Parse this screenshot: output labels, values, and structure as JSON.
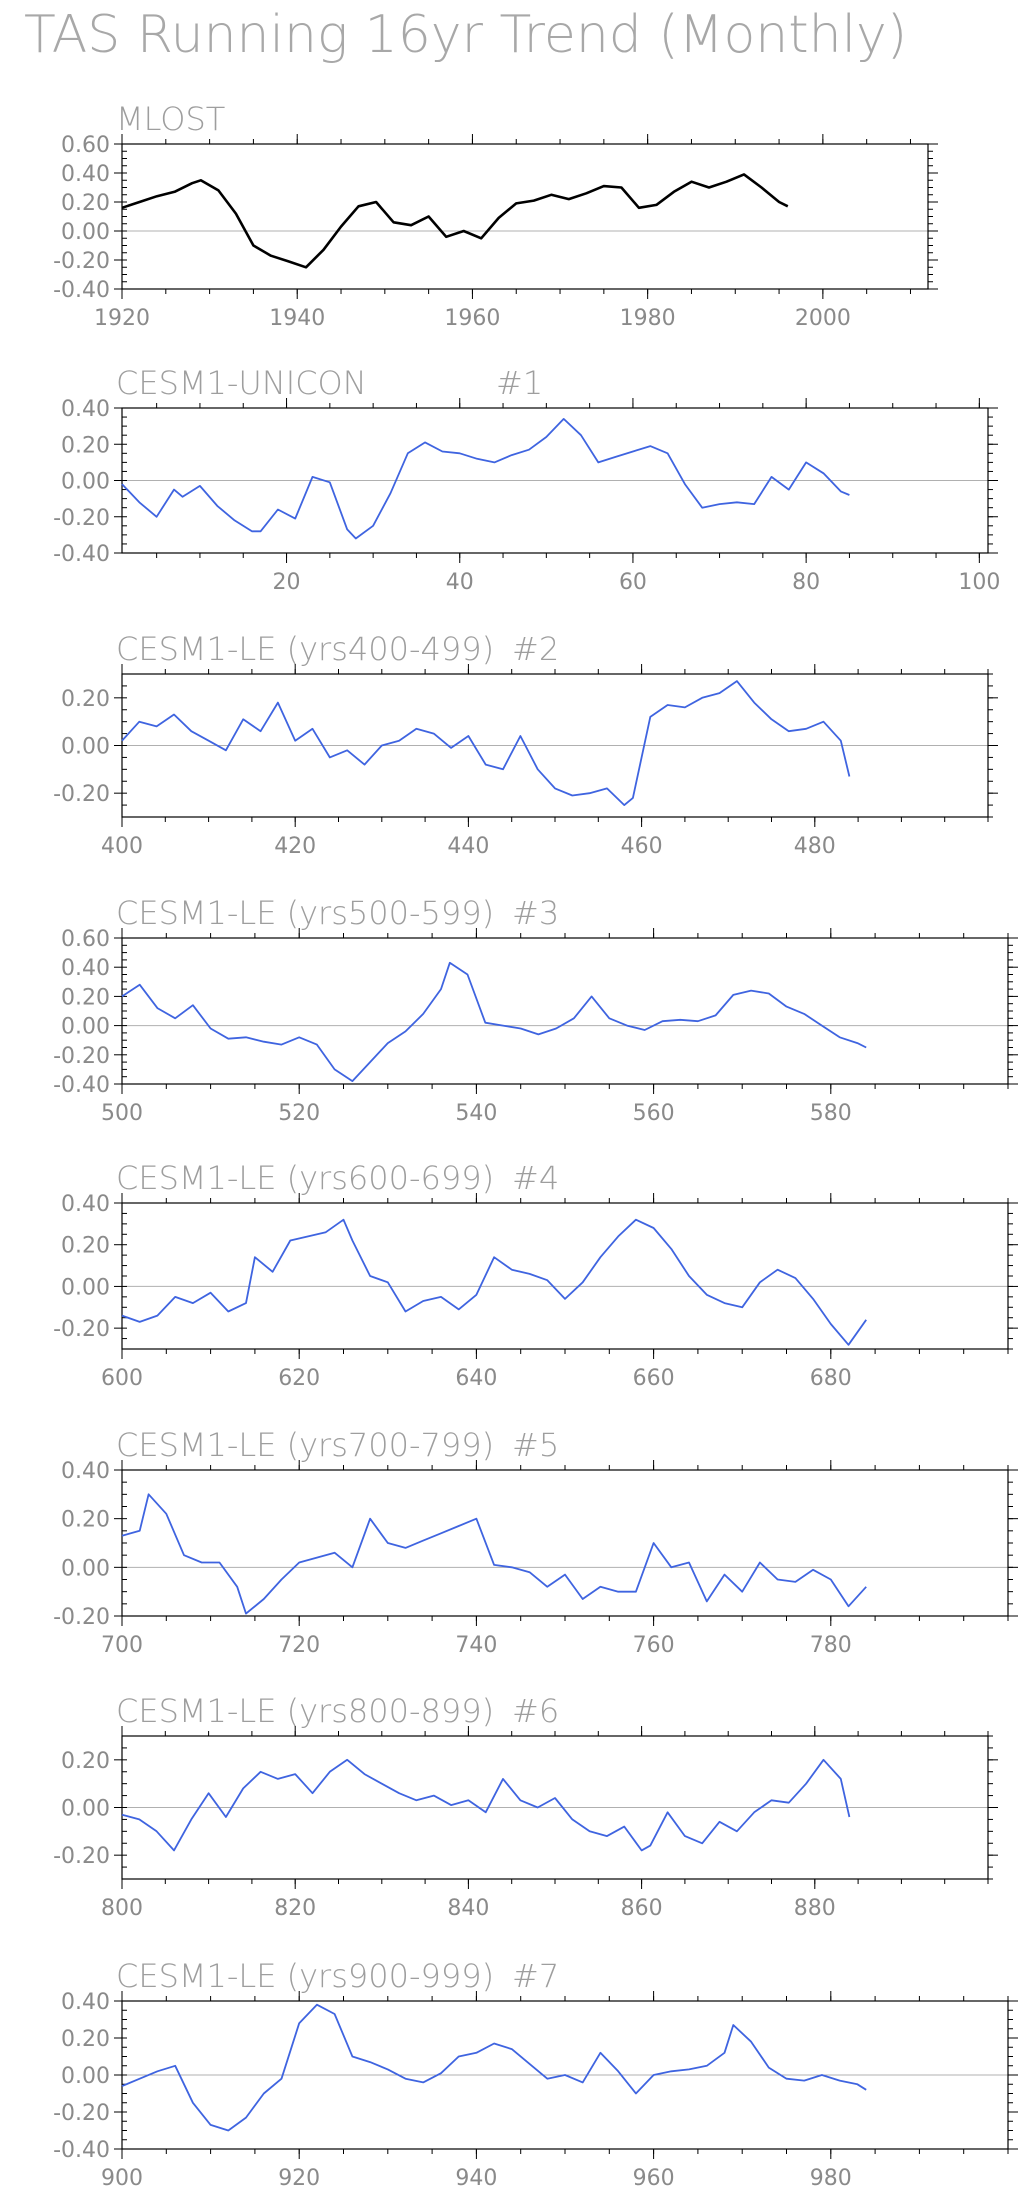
{
  "figure": {
    "title": "TAS Running 16yr Trend (Monthly)"
  },
  "colors": {
    "observed": "#000000",
    "model": "#3f64e0",
    "text": "#9a9a9a",
    "zero_line": "#b0b0b0"
  },
  "chart_data": [
    {
      "type": "line",
      "title": "MLOST",
      "run_label": "",
      "xlim": [
        1920,
        2012
      ],
      "ylim": [
        -0.4,
        0.6
      ],
      "xticks": [
        1920,
        1940,
        1960,
        1980,
        2000
      ],
      "xticklabels": [
        "1920",
        "1940",
        "1960",
        "1980",
        "2000"
      ],
      "yticks": [
        -0.4,
        -0.2,
        0.0,
        0.2,
        0.4,
        0.6
      ],
      "yticklabels": [
        "-0.40",
        "-0.20",
        "0.00",
        "0.20",
        "0.40",
        "0.60"
      ],
      "series": [
        {
          "color": "#000000",
          "x": [
            1920,
            1922,
            1924,
            1926,
            1928,
            1929,
            1931,
            1933,
            1935,
            1937,
            1939,
            1941,
            1943,
            1945,
            1947,
            1949,
            1951,
            1953,
            1955,
            1957,
            1959,
            1961,
            1963,
            1965,
            1967,
            1969,
            1971,
            1973,
            1975,
            1977,
            1979,
            1981,
            1983,
            1985,
            1987,
            1989,
            1991,
            1993,
            1995,
            1996
          ],
          "y": [
            0.16,
            0.2,
            0.24,
            0.27,
            0.33,
            0.35,
            0.28,
            0.12,
            -0.1,
            -0.17,
            -0.21,
            -0.25,
            -0.13,
            0.03,
            0.17,
            0.2,
            0.06,
            0.04,
            0.1,
            -0.04,
            0.0,
            -0.05,
            0.09,
            0.19,
            0.21,
            0.25,
            0.22,
            0.26,
            0.31,
            0.3,
            0.16,
            0.18,
            0.27,
            0.34,
            0.3,
            0.34,
            0.39,
            0.3,
            0.2,
            0.17
          ]
        }
      ]
    },
    {
      "type": "line",
      "title": "CESM1-UNICON",
      "run_label": "#1",
      "xlim": [
        1,
        101
      ],
      "ylim": [
        -0.4,
        0.4
      ],
      "xticks": [
        20,
        40,
        60,
        80,
        100
      ],
      "xticklabels": [
        "20",
        "40",
        "60",
        "80",
        "100"
      ],
      "yticks": [
        -0.4,
        -0.2,
        0.0,
        0.2,
        0.4
      ],
      "yticklabels": [
        "-0.40",
        "-0.20",
        "0.00",
        "0.20",
        "0.40"
      ],
      "series": [
        {
          "color": "#3f64e0",
          "x": [
            1,
            3,
            5,
            7,
            8,
            10,
            12,
            14,
            16,
            17,
            19,
            21,
            23,
            25,
            27,
            28,
            30,
            32,
            34,
            36,
            38,
            40,
            42,
            44,
            46,
            48,
            50,
            52,
            54,
            56,
            58,
            60,
            62,
            64,
            66,
            68,
            70,
            72,
            74,
            76,
            78,
            80,
            82,
            84,
            85
          ],
          "y": [
            -0.02,
            -0.12,
            -0.2,
            -0.05,
            -0.09,
            -0.03,
            -0.14,
            -0.22,
            -0.28,
            -0.28,
            -0.16,
            -0.21,
            0.02,
            -0.01,
            -0.27,
            -0.32,
            -0.25,
            -0.07,
            0.15,
            0.21,
            0.16,
            0.15,
            0.12,
            0.1,
            0.14,
            0.17,
            0.24,
            0.34,
            0.25,
            0.1,
            0.13,
            0.16,
            0.19,
            0.15,
            -0.02,
            -0.15,
            -0.13,
            -0.12,
            -0.13,
            0.02,
            -0.05,
            0.1,
            0.04,
            -0.06,
            -0.08
          ]
        }
      ]
    },
    {
      "type": "line",
      "title": "CESM1-LE (yrs400-499)",
      "run_label": "#2",
      "xlim": [
        400,
        500
      ],
      "ylim": [
        -0.3,
        0.3
      ],
      "xticks": [
        400,
        420,
        440,
        460,
        480
      ],
      "xticklabels": [
        "400",
        "420",
        "440",
        "460",
        "480"
      ],
      "yticks": [
        -0.2,
        0.0,
        0.2
      ],
      "yticklabels": [
        "-0.20",
        "0.00",
        "0.20"
      ],
      "series": [
        {
          "color": "#3f64e0",
          "x": [
            400,
            402,
            404,
            406,
            408,
            410,
            412,
            414,
            416,
            418,
            420,
            422,
            424,
            426,
            428,
            430,
            432,
            434,
            436,
            438,
            440,
            442,
            444,
            446,
            448,
            450,
            452,
            454,
            456,
            458,
            459,
            461,
            463,
            465,
            467,
            469,
            471,
            473,
            475,
            477,
            479,
            481,
            483,
            484
          ],
          "y": [
            0.02,
            0.1,
            0.08,
            0.13,
            0.06,
            0.02,
            -0.02,
            0.11,
            0.06,
            0.18,
            0.02,
            0.07,
            -0.05,
            -0.02,
            -0.08,
            0.0,
            0.02,
            0.07,
            0.05,
            -0.01,
            0.04,
            -0.08,
            -0.1,
            0.04,
            -0.1,
            -0.18,
            -0.21,
            -0.2,
            -0.18,
            -0.25,
            -0.22,
            0.12,
            0.17,
            0.16,
            0.2,
            0.22,
            0.27,
            0.18,
            0.11,
            0.06,
            0.07,
            0.1,
            0.02,
            -0.13
          ]
        }
      ]
    },
    {
      "type": "line",
      "title": "CESM1-LE (yrs500-599)",
      "run_label": "#3",
      "xlim": [
        500,
        600
      ],
      "ylim": [
        -0.4,
        0.6
      ],
      "xticks": [
        500,
        520,
        540,
        560,
        580
      ],
      "xticklabels": [
        "500",
        "520",
        "540",
        "560",
        "580"
      ],
      "yticks": [
        -0.4,
        -0.2,
        0.0,
        0.2,
        0.4,
        0.6
      ],
      "yticklabels": [
        "-0.40",
        "-0.20",
        "0.00",
        "0.20",
        "0.40",
        "0.60"
      ],
      "series": [
        {
          "color": "#3f64e0",
          "x": [
            500,
            502,
            504,
            506,
            508,
            510,
            512,
            514,
            516,
            518,
            520,
            522,
            524,
            526,
            528,
            530,
            532,
            534,
            536,
            537,
            539,
            541,
            543,
            545,
            547,
            549,
            551,
            553,
            555,
            557,
            559,
            561,
            563,
            565,
            567,
            569,
            571,
            573,
            575,
            577,
            579,
            581,
            583,
            584
          ],
          "y": [
            0.2,
            0.28,
            0.12,
            0.05,
            0.14,
            -0.02,
            -0.09,
            -0.08,
            -0.11,
            -0.13,
            -0.08,
            -0.13,
            -0.3,
            -0.38,
            -0.25,
            -0.12,
            -0.04,
            0.08,
            0.25,
            0.43,
            0.35,
            0.02,
            0.0,
            -0.02,
            -0.06,
            -0.02,
            0.05,
            0.2,
            0.05,
            0.0,
            -0.03,
            0.03,
            0.04,
            0.03,
            0.07,
            0.21,
            0.24,
            0.22,
            0.13,
            0.08,
            0.0,
            -0.08,
            -0.12,
            -0.15
          ]
        }
      ]
    },
    {
      "type": "line",
      "title": "CESM1-LE (yrs600-699)",
      "run_label": "#4",
      "xlim": [
        600,
        700
      ],
      "ylim": [
        -0.3,
        0.4
      ],
      "xticks": [
        600,
        620,
        640,
        660,
        680
      ],
      "xticklabels": [
        "600",
        "620",
        "640",
        "660",
        "680"
      ],
      "yticks": [
        -0.2,
        0.0,
        0.2,
        0.4
      ],
      "yticklabels": [
        "-0.20",
        "0.00",
        "0.20",
        "0.40"
      ],
      "series": [
        {
          "color": "#3f64e0",
          "x": [
            600,
            602,
            604,
            606,
            608,
            610,
            612,
            614,
            615,
            617,
            619,
            621,
            623,
            625,
            626,
            628,
            630,
            632,
            634,
            636,
            638,
            640,
            642,
            644,
            646,
            648,
            650,
            652,
            654,
            656,
            658,
            660,
            662,
            664,
            666,
            668,
            670,
            672,
            674,
            676,
            678,
            680,
            682,
            684
          ],
          "y": [
            -0.14,
            -0.17,
            -0.14,
            -0.05,
            -0.08,
            -0.03,
            -0.12,
            -0.08,
            0.14,
            0.07,
            0.22,
            0.24,
            0.26,
            0.32,
            0.22,
            0.05,
            0.02,
            -0.12,
            -0.07,
            -0.05,
            -0.11,
            -0.04,
            0.14,
            0.08,
            0.06,
            0.03,
            -0.06,
            0.02,
            0.14,
            0.24,
            0.32,
            0.28,
            0.18,
            0.05,
            -0.04,
            -0.08,
            -0.1,
            0.02,
            0.08,
            0.04,
            -0.06,
            -0.18,
            -0.28,
            -0.16
          ]
        }
      ]
    },
    {
      "type": "line",
      "title": "CESM1-LE (yrs700-799)",
      "run_label": "#5",
      "xlim": [
        700,
        800
      ],
      "ylim": [
        -0.2,
        0.4
      ],
      "xticks": [
        700,
        720,
        740,
        760,
        780
      ],
      "xticklabels": [
        "700",
        "720",
        "740",
        "760",
        "780"
      ],
      "yticks": [
        -0.2,
        0.0,
        0.2,
        0.4
      ],
      "yticklabels": [
        "-0.20",
        "0.00",
        "0.20",
        "0.40"
      ],
      "series": [
        {
          "color": "#3f64e0",
          "x": [
            700,
            702,
            703,
            705,
            707,
            709,
            711,
            713,
            714,
            716,
            718,
            720,
            722,
            724,
            726,
            728,
            730,
            732,
            734,
            736,
            738,
            740,
            742,
            744,
            746,
            748,
            750,
            752,
            754,
            756,
            758,
            760,
            762,
            764,
            766,
            768,
            770,
            772,
            774,
            776,
            778,
            780,
            782,
            784
          ],
          "y": [
            0.13,
            0.15,
            0.3,
            0.22,
            0.05,
            0.02,
            0.02,
            -0.08,
            -0.19,
            -0.13,
            -0.05,
            0.02,
            0.04,
            0.06,
            0.0,
            0.2,
            0.1,
            0.08,
            0.11,
            0.14,
            0.17,
            0.2,
            0.01,
            0.0,
            -0.02,
            -0.08,
            -0.03,
            -0.13,
            -0.08,
            -0.1,
            -0.1,
            0.1,
            0.0,
            0.02,
            -0.14,
            -0.03,
            -0.1,
            0.02,
            -0.05,
            -0.06,
            -0.01,
            -0.05,
            -0.16,
            -0.08
          ]
        }
      ]
    },
    {
      "type": "line",
      "title": "CESM1-LE (yrs800-899)",
      "run_label": "#6",
      "xlim": [
        800,
        900
      ],
      "ylim": [
        -0.3,
        0.3
      ],
      "xticks": [
        800,
        820,
        840,
        860,
        880
      ],
      "xticklabels": [
        "800",
        "820",
        "840",
        "860",
        "880"
      ],
      "yticks": [
        -0.2,
        0.0,
        0.2
      ],
      "yticklabels": [
        "-0.20",
        "0.00",
        "0.20"
      ],
      "series": [
        {
          "color": "#3f64e0",
          "x": [
            800,
            802,
            804,
            806,
            808,
            810,
            812,
            814,
            816,
            818,
            820,
            822,
            824,
            826,
            828,
            830,
            832,
            834,
            836,
            838,
            840,
            842,
            844,
            846,
            848,
            850,
            852,
            854,
            856,
            858,
            860,
            861,
            863,
            865,
            867,
            869,
            871,
            873,
            875,
            877,
            879,
            881,
            883,
            884
          ],
          "y": [
            -0.03,
            -0.05,
            -0.1,
            -0.18,
            -0.05,
            0.06,
            -0.04,
            0.08,
            0.15,
            0.12,
            0.14,
            0.06,
            0.15,
            0.2,
            0.14,
            0.1,
            0.06,
            0.03,
            0.05,
            0.01,
            0.03,
            -0.02,
            0.12,
            0.03,
            0.0,
            0.04,
            -0.05,
            -0.1,
            -0.12,
            -0.08,
            -0.18,
            -0.16,
            -0.02,
            -0.12,
            -0.15,
            -0.06,
            -0.1,
            -0.02,
            0.03,
            0.02,
            0.1,
            0.2,
            0.12,
            -0.04
          ]
        }
      ]
    },
    {
      "type": "line",
      "title": "CESM1-LE (yrs900-999)",
      "run_label": "#7",
      "xlim": [
        900,
        1000
      ],
      "ylim": [
        -0.4,
        0.4
      ],
      "xticks": [
        900,
        920,
        940,
        960,
        980
      ],
      "xticklabels": [
        "900",
        "920",
        "940",
        "960",
        "980"
      ],
      "yticks": [
        -0.4,
        -0.2,
        0.0,
        0.2,
        0.4
      ],
      "yticklabels": [
        "-0.40",
        "-0.20",
        "0.00",
        "0.20",
        "0.40"
      ],
      "series": [
        {
          "color": "#3f64e0",
          "x": [
            900,
            902,
            904,
            906,
            908,
            910,
            912,
            914,
            916,
            918,
            920,
            922,
            924,
            926,
            928,
            930,
            932,
            934,
            936,
            938,
            940,
            942,
            944,
            946,
            948,
            950,
            952,
            954,
            956,
            958,
            960,
            962,
            964,
            966,
            968,
            969,
            971,
            973,
            975,
            977,
            979,
            981,
            983,
            984
          ],
          "y": [
            -0.06,
            -0.02,
            0.02,
            0.05,
            -0.15,
            -0.27,
            -0.3,
            -0.23,
            -0.1,
            -0.02,
            0.28,
            0.38,
            0.33,
            0.1,
            0.07,
            0.03,
            -0.02,
            -0.04,
            0.01,
            0.1,
            0.12,
            0.17,
            0.14,
            0.06,
            -0.02,
            0.0,
            -0.04,
            0.12,
            0.02,
            -0.1,
            0.0,
            0.02,
            0.03,
            0.05,
            0.12,
            0.27,
            0.18,
            0.04,
            -0.02,
            -0.03,
            0.0,
            -0.03,
            -0.05,
            -0.08
          ]
        }
      ]
    }
  ]
}
